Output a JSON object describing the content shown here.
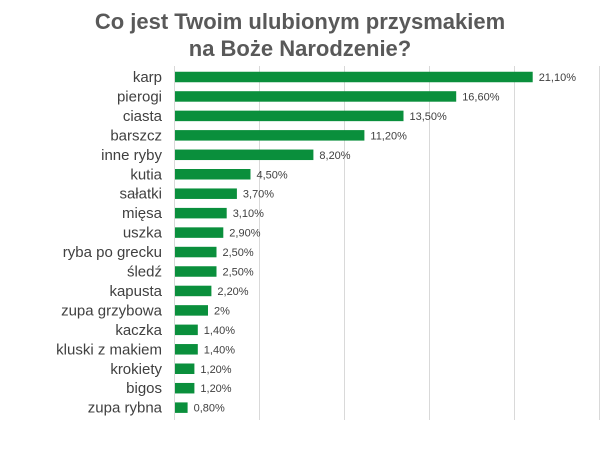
{
  "chart_data": {
    "type": "bar",
    "orientation": "horizontal",
    "title_line1": "Co jest Twoim ulubionym przysmakiem",
    "title_line2": "na Boże Narodzenie?",
    "categories": [
      "karp",
      "pierogi",
      "ciasta",
      "barszcz",
      "inne ryby",
      "kutia",
      "sałatki",
      "mięsa",
      "uszka",
      "ryba po grecku",
      "śledź",
      "kapusta",
      "zupa grzybowa",
      "kaczka",
      "kluski z makiem",
      "krokiety",
      "bigos",
      "zupa rybna"
    ],
    "values": [
      21.1,
      16.6,
      13.5,
      11.2,
      8.2,
      4.5,
      3.7,
      3.1,
      2.9,
      2.5,
      2.5,
      2.2,
      2.0,
      1.4,
      1.4,
      1.2,
      1.2,
      0.8
    ],
    "value_labels": [
      "21,10%",
      "16,60%",
      "13,50%",
      "11,20%",
      "8,20%",
      "4,50%",
      "3,70%",
      "3,10%",
      "2,90%",
      "2,50%",
      "2,50%",
      "2,20%",
      "2%",
      "1,40%",
      "1,40%",
      "1,20%",
      "1,20%",
      "0,80%"
    ],
    "xlim": [
      0,
      25
    ],
    "grid": true,
    "bar_color": "#0a8f3c",
    "gridline_color": "#d9d9d9"
  }
}
